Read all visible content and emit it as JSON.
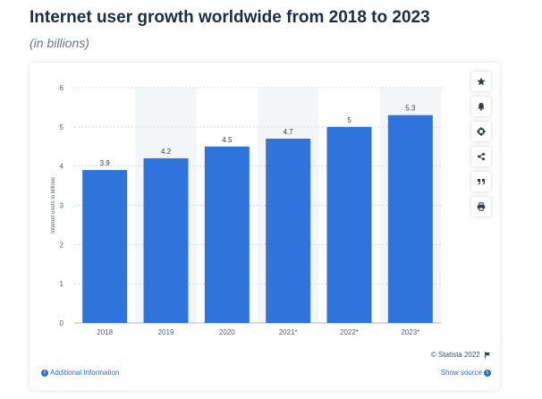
{
  "header": {
    "title": "Internet user growth worldwide from 2018 to 2023",
    "subtitle": "(in billions)"
  },
  "chart_data": {
    "type": "bar",
    "title": "Internet user growth worldwide from 2018 to 2023",
    "subtitle": "(in billions)",
    "xlabel": "",
    "ylabel": "Internet users in billions",
    "categories": [
      "2018",
      "2019",
      "2020",
      "2021*",
      "2022*",
      "2023*"
    ],
    "values": [
      3.9,
      4.2,
      4.5,
      4.7,
      5,
      5.3
    ],
    "value_labels": [
      "3.9",
      "4.2",
      "4.5",
      "4.7",
      "5",
      "5.3"
    ],
    "ylim": [
      0,
      6
    ],
    "yticks": [
      "0",
      "1",
      "2",
      "3",
      "4",
      "5",
      "6"
    ],
    "grid": true,
    "bar_color": "#2f74dc",
    "legend": "none"
  },
  "tools": [
    {
      "name": "favorite",
      "icon": "star-icon"
    },
    {
      "name": "notify",
      "icon": "bell-icon"
    },
    {
      "name": "settings",
      "icon": "gear-icon"
    },
    {
      "name": "share",
      "icon": "share-icon"
    },
    {
      "name": "cite",
      "icon": "quote-icon"
    },
    {
      "name": "print",
      "icon": "print-icon"
    }
  ],
  "footer": {
    "copyright": "© Statista 2022",
    "additional_info": "Additional Information",
    "show_source": "Show source",
    "info_glyph": "i"
  },
  "colors": {
    "accent": "#2d6fc6",
    "bar": "#2f74dc",
    "title": "#1f2d3d"
  }
}
